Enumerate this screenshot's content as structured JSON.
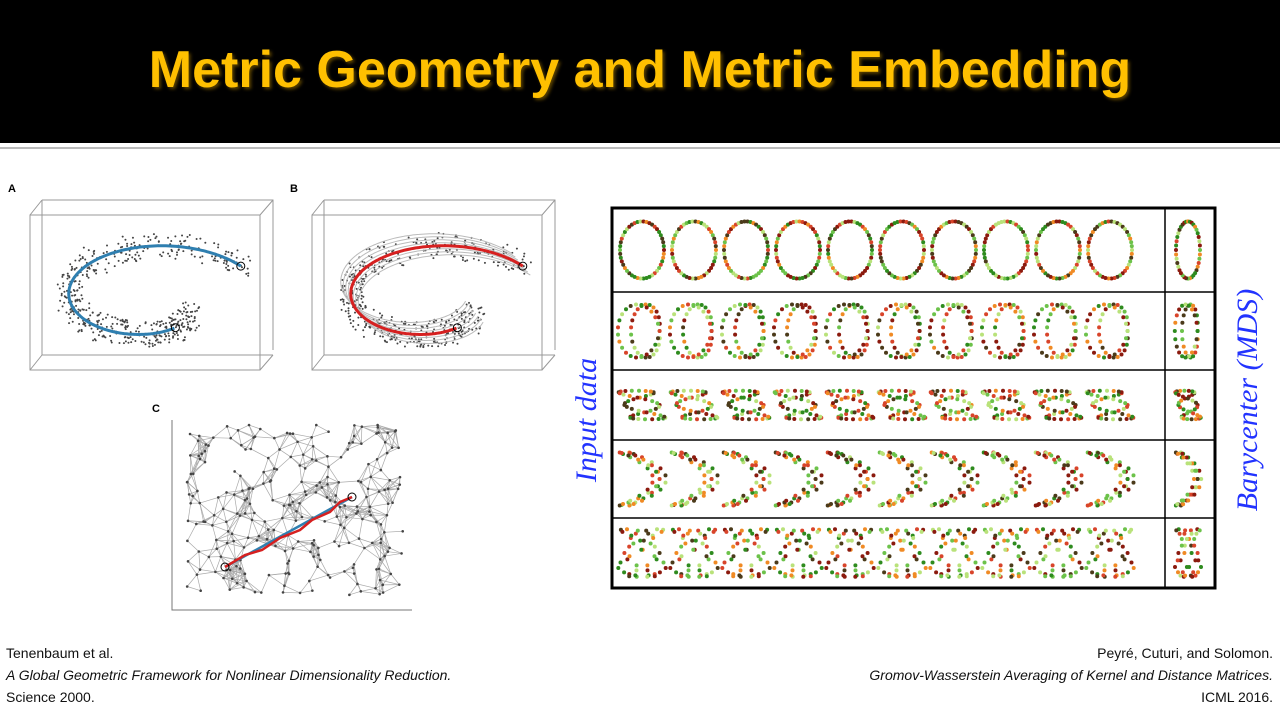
{
  "header": {
    "title": "Metric Geometry and Metric Embedding"
  },
  "left_figure": {
    "panels": [
      {
        "label": "A"
      },
      {
        "label": "B"
      },
      {
        "label": "C"
      }
    ]
  },
  "right_figure": {
    "input_label": "Input data",
    "barycenter_label": "Barycenter (MDS)"
  },
  "citations": [
    {
      "authors": "Tenenbaum et al.",
      "title": "A Global Geometric Framework for Nonlinear Dimensionality Reduction.",
      "venue": "Science 2000."
    },
    {
      "authors": "Peyré, Cuturi, and Solomon.",
      "title": "Gromov-Wasserstein Averaging of Kernel and Distance Matrices.",
      "venue": "ICML 2016."
    }
  ]
}
